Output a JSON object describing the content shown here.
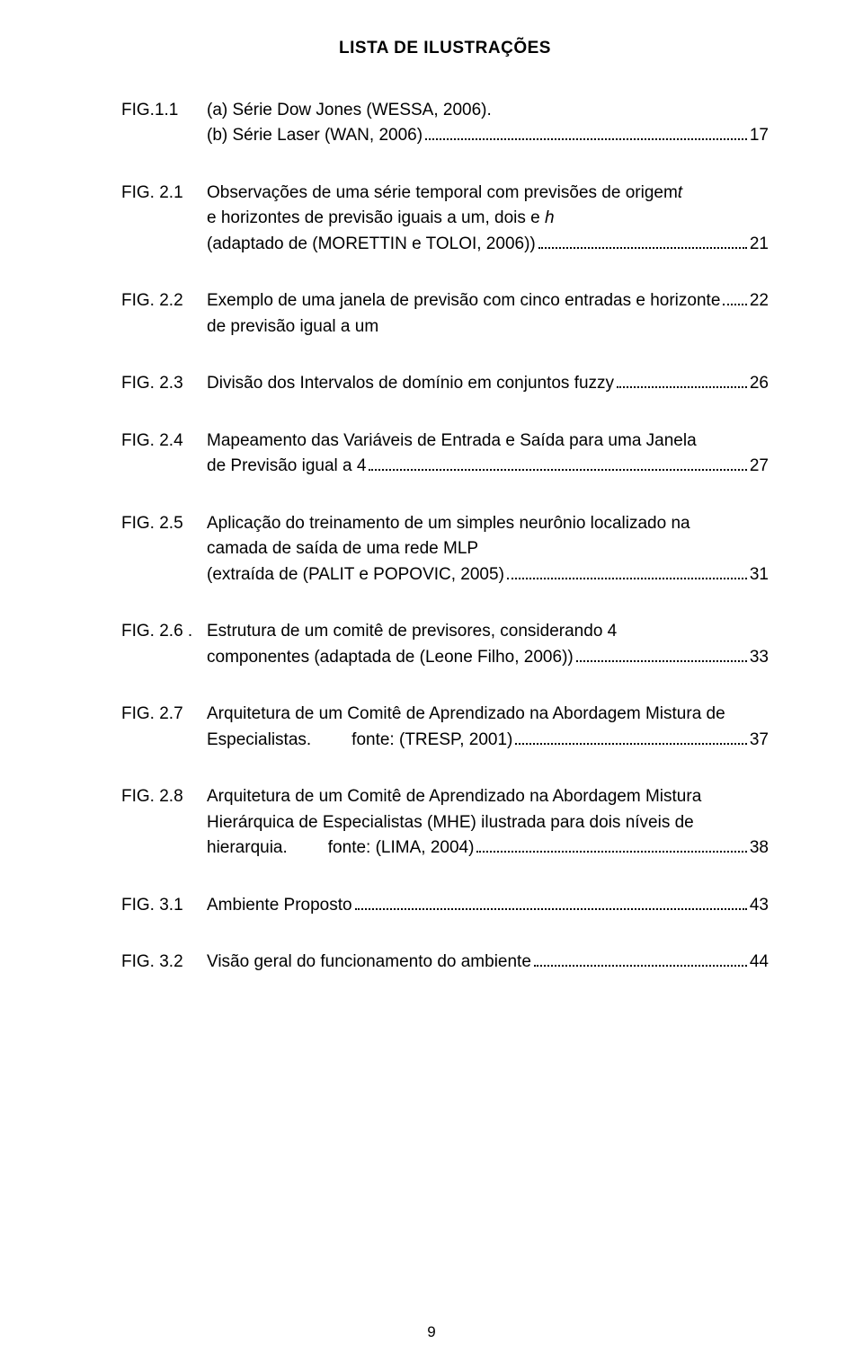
{
  "title": "LISTA DE ILUSTRAÇÕES",
  "page_number": "9",
  "entries": [
    {
      "label": "FIG.1.1",
      "lines": [
        {
          "text": "(a) Série Dow Jones (WESSA, 2006)."
        }
      ],
      "cont": [
        {
          "text": "(b) Série Laser (WAN, 2006)",
          "page": "17"
        }
      ]
    },
    {
      "label": "FIG. 2.1",
      "lines": [
        {
          "text": "Observações de uma série temporal com previsões de origem "
        },
        {
          "text_italic": "t"
        }
      ],
      "cont": [
        {
          "text": "e horizontes de previsão iguais a um, dois e ",
          "text_italic": "h"
        },
        {
          "text": "(adaptado de (MORETTIN e TOLOI, 2006))",
          "page": "21"
        }
      ]
    },
    {
      "label": "FIG. 2.2",
      "lines": [
        {
          "text": "Exemplo de uma janela de previsão com cinco entradas e horizonte",
          "page": "22"
        }
      ],
      "cont": [
        {
          "text": "de previsão igual a um"
        }
      ]
    },
    {
      "label": "FIG. 2.3",
      "lines": [
        {
          "text": "Divisão dos Intervalos de domínio em conjuntos fuzzy",
          "page": "26"
        }
      ]
    },
    {
      "label": "FIG. 2.4",
      "lines": [
        {
          "text": "Mapeamento das Variáveis de Entrada e Saída para uma Janela"
        }
      ],
      "cont": [
        {
          "text": "de Previsão igual a 4",
          "page": "27"
        }
      ]
    },
    {
      "label": "FIG. 2.5",
      "lines": [
        {
          "text": "Aplicação do treinamento de um simples neurônio localizado na"
        }
      ],
      "cont": [
        {
          "text": "camada de saída de uma rede MLP"
        },
        {
          "text": "(extraída de (PALIT e POPOVIC, 2005)",
          "page": "31"
        }
      ]
    },
    {
      "label": "FIG. 2.6 .",
      "lines": [
        {
          "text": "Estrutura de um comitê de previsores, considerando 4"
        }
      ],
      "cont": [
        {
          "text": "componentes (adaptada de (Leone Filho, 2006))",
          "page": "33"
        }
      ]
    },
    {
      "label": "FIG. 2.7",
      "lines": [
        {
          "text": "Arquitetura de um Comitê de Aprendizado na Abordagem Mistura de"
        }
      ],
      "cont": [
        {
          "text": "Especialistas.",
          "spacer": true,
          "text2": "fonte: (TRESP, 2001)",
          "page": "37"
        }
      ]
    },
    {
      "label": "FIG. 2.8",
      "lines": [
        {
          "text": "Arquitetura de um Comitê de Aprendizado na Abordagem Mistura"
        }
      ],
      "cont": [
        {
          "text": "Hierárquica de Especialistas (MHE) ilustrada para dois níveis de"
        },
        {
          "text": "hierarquia.",
          "spacer": true,
          "text2": "fonte: (LIMA, 2004)",
          "page": "38"
        }
      ]
    },
    {
      "label": "FIG. 3.1",
      "lines": [
        {
          "text": "Ambiente Proposto",
          "page": "43"
        }
      ]
    },
    {
      "label": "FIG. 3.2",
      "lines": [
        {
          "text": "Visão geral do funcionamento do ambiente",
          "page": "44"
        }
      ]
    }
  ]
}
